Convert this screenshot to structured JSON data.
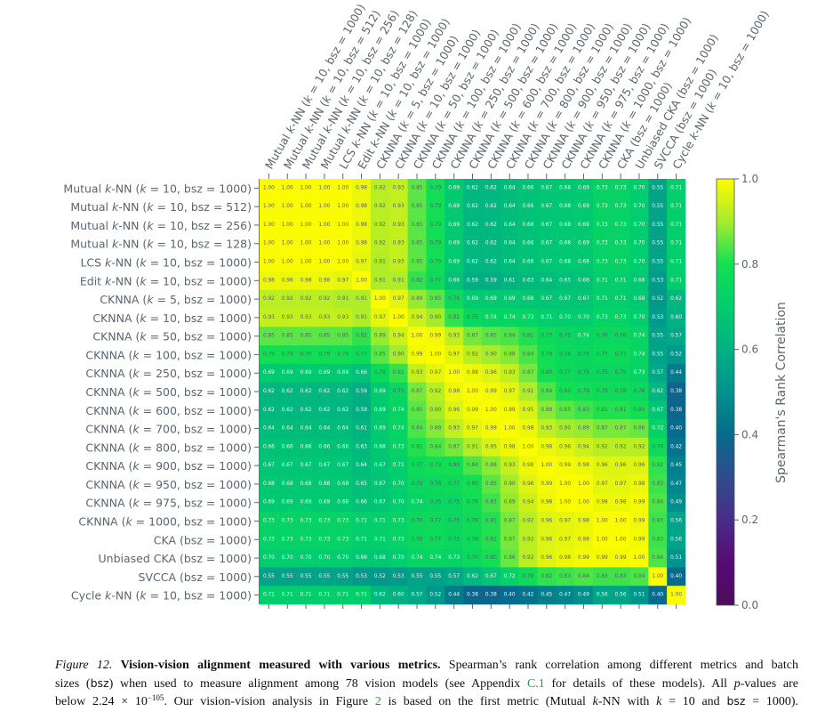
{
  "chart_data": {
    "type": "heatmap",
    "row_labels": [
      "Mutual k-NN (k = 10, bsz = 1000)",
      "Mutual k-NN (k = 10, bsz = 512)",
      "Mutual k-NN (k = 10, bsz = 256)",
      "Mutual k-NN (k = 10, bsz = 128)",
      "LCS k-NN (k = 10, bsz = 1000)",
      "Edit k-NN (k = 10, bsz = 1000)",
      "CKNNA (k = 5, bsz = 1000)",
      "CKNNA (k = 10, bsz = 1000)",
      "CKNNA (k = 50, bsz = 1000)",
      "CKNNA (k = 100, bsz = 1000)",
      "CKNNA (k = 250, bsz = 1000)",
      "CKNNA (k = 500, bsz = 1000)",
      "CKNNA (k = 600, bsz = 1000)",
      "CKNNA (k = 700, bsz = 1000)",
      "CKNNA (k = 800, bsz = 1000)",
      "CKNNA (k = 900, bsz = 1000)",
      "CKNNA (k = 950, bsz = 1000)",
      "CKNNA (k = 975, bsz = 1000)",
      "CKNNA (k = 1000, bsz = 1000)",
      "CKA (bsz = 1000)",
      "Unbiased CKA (bsz = 1000)",
      "SVCCA (bsz = 1000)",
      "Cycle k-NN (k = 10, bsz = 1000)"
    ],
    "col_labels": [
      "Mutual k-NN (k = 10, bsz = 1000)",
      "Mutual k-NN (k = 10, bsz = 512)",
      "Mutual k-NN (k = 10, bsz = 256)",
      "Mutual k-NN (k = 10, bsz = 128)",
      "LCS k-NN (k = 10, bsz = 1000)",
      "Edit k-NN (k = 10, bsz = 1000)",
      "CKNNA (k = 5, bsz = 1000)",
      "CKNNA (k = 10, bsz = 1000)",
      "CKNNA (k = 50, bsz = 1000)",
      "CKNNA (k = 100, bsz = 1000)",
      "CKNNA (k = 250, bsz = 1000)",
      "CKNNA (k = 500, bsz = 1000)",
      "CKNNA (k = 600, bsz = 1000)",
      "CKNNA (k = 700, bsz = 1000)",
      "CKNNA (k = 800, bsz = 1000)",
      "CKNNA (k = 900, bsz = 1000)",
      "CKNNA (k = 950, bsz = 1000)",
      "CKNNA (k = 975, bsz = 1000)",
      "CKNNA (k = 1000, bsz = 1000)",
      "CKA (bsz = 1000)",
      "Unbiased CKA (bsz = 1000)",
      "SVCCA (bsz = 1000)",
      "Cycle k-NN (k = 10, bsz = 1000)"
    ],
    "values": [
      [
        1.0,
        1.0,
        1.0,
        1.0,
        1.0,
        0.98,
        0.92,
        0.93,
        0.85,
        0.79,
        0.69,
        0.62,
        0.62,
        0.64,
        0.66,
        0.67,
        0.68,
        0.69,
        0.73,
        0.73,
        0.7,
        0.55,
        0.71
      ],
      [
        1.0,
        1.0,
        1.0,
        1.0,
        1.0,
        0.98,
        0.92,
        0.93,
        0.85,
        0.79,
        0.69,
        0.62,
        0.62,
        0.64,
        0.66,
        0.67,
        0.68,
        0.69,
        0.73,
        0.73,
        0.7,
        0.55,
        0.71
      ],
      [
        1.0,
        1.0,
        1.0,
        1.0,
        1.0,
        0.98,
        0.92,
        0.93,
        0.85,
        0.79,
        0.69,
        0.62,
        0.62,
        0.64,
        0.66,
        0.67,
        0.68,
        0.69,
        0.73,
        0.73,
        0.7,
        0.55,
        0.71
      ],
      [
        1.0,
        1.0,
        1.0,
        1.0,
        1.0,
        0.98,
        0.92,
        0.93,
        0.85,
        0.79,
        0.69,
        0.62,
        0.62,
        0.64,
        0.66,
        0.67,
        0.68,
        0.69,
        0.73,
        0.73,
        0.7,
        0.55,
        0.71
      ],
      [
        1.0,
        1.0,
        1.0,
        1.0,
        1.0,
        0.97,
        0.91,
        0.93,
        0.85,
        0.79,
        0.69,
        0.62,
        0.62,
        0.64,
        0.66,
        0.67,
        0.68,
        0.68,
        0.73,
        0.73,
        0.7,
        0.55,
        0.71
      ],
      [
        0.98,
        0.98,
        0.98,
        0.98,
        0.97,
        1.0,
        0.91,
        0.91,
        0.82,
        0.77,
        0.66,
        0.59,
        0.59,
        0.61,
        0.63,
        0.64,
        0.65,
        0.66,
        0.71,
        0.71,
        0.68,
        0.53,
        0.71
      ],
      [
        0.92,
        0.92,
        0.92,
        0.92,
        0.91,
        0.91,
        1.0,
        0.97,
        0.89,
        0.85,
        0.76,
        0.69,
        0.69,
        0.69,
        0.68,
        0.67,
        0.67,
        0.67,
        0.71,
        0.71,
        0.68,
        0.52,
        0.62
      ],
      [
        0.93,
        0.93,
        0.93,
        0.93,
        0.93,
        0.91,
        0.97,
        1.0,
        0.94,
        0.9,
        0.82,
        0.75,
        0.74,
        0.74,
        0.73,
        0.71,
        0.7,
        0.7,
        0.73,
        0.73,
        0.7,
        0.53,
        0.6
      ],
      [
        0.85,
        0.85,
        0.85,
        0.85,
        0.85,
        0.82,
        0.89,
        0.94,
        1.0,
        0.99,
        0.93,
        0.87,
        0.85,
        0.84,
        0.81,
        0.77,
        0.75,
        0.74,
        0.76,
        0.76,
        0.74,
        0.55,
        0.57
      ],
      [
        0.79,
        0.79,
        0.79,
        0.79,
        0.79,
        0.77,
        0.85,
        0.9,
        0.99,
        1.0,
        0.97,
        0.92,
        0.9,
        0.88,
        0.84,
        0.79,
        0.76,
        0.75,
        0.77,
        0.77,
        0.74,
        0.55,
        0.52
      ],
      [
        0.69,
        0.69,
        0.69,
        0.69,
        0.69,
        0.66,
        0.76,
        0.82,
        0.93,
        0.97,
        1.0,
        0.98,
        0.96,
        0.93,
        0.87,
        0.8,
        0.77,
        0.75,
        0.75,
        0.75,
        0.73,
        0.57,
        0.44
      ],
      [
        0.62,
        0.62,
        0.62,
        0.62,
        0.62,
        0.59,
        0.69,
        0.75,
        0.87,
        0.92,
        0.98,
        1.0,
        0.99,
        0.97,
        0.91,
        0.84,
        0.8,
        0.79,
        0.78,
        0.78,
        0.76,
        0.62,
        0.38
      ],
      [
        0.62,
        0.62,
        0.62,
        0.62,
        0.62,
        0.59,
        0.69,
        0.74,
        0.85,
        0.9,
        0.96,
        0.99,
        1.0,
        0.99,
        0.95,
        0.88,
        0.85,
        0.83,
        0.81,
        0.81,
        0.8,
        0.67,
        0.38
      ],
      [
        0.64,
        0.64,
        0.64,
        0.64,
        0.64,
        0.61,
        0.69,
        0.74,
        0.84,
        0.88,
        0.93,
        0.97,
        0.99,
        1.0,
        0.98,
        0.93,
        0.9,
        0.89,
        0.87,
        0.87,
        0.86,
        0.72,
        0.4
      ],
      [
        0.66,
        0.66,
        0.66,
        0.66,
        0.66,
        0.63,
        0.68,
        0.73,
        0.81,
        0.84,
        0.87,
        0.91,
        0.95,
        0.98,
        1.0,
        0.98,
        0.96,
        0.94,
        0.92,
        0.92,
        0.92,
        0.78,
        0.42
      ],
      [
        0.67,
        0.67,
        0.67,
        0.67,
        0.67,
        0.64,
        0.67,
        0.71,
        0.77,
        0.79,
        0.8,
        0.84,
        0.88,
        0.93,
        0.98,
        1.0,
        0.99,
        0.98,
        0.96,
        0.96,
        0.96,
        0.82,
        0.45
      ],
      [
        0.68,
        0.68,
        0.68,
        0.68,
        0.68,
        0.65,
        0.67,
        0.7,
        0.75,
        0.76,
        0.77,
        0.8,
        0.85,
        0.9,
        0.96,
        0.99,
        1.0,
        1.0,
        0.97,
        0.97,
        0.98,
        0.83,
        0.47
      ],
      [
        0.69,
        0.69,
        0.69,
        0.69,
        0.68,
        0.66,
        0.67,
        0.7,
        0.74,
        0.75,
        0.75,
        0.79,
        0.83,
        0.89,
        0.94,
        0.98,
        1.0,
        1.0,
        0.98,
        0.98,
        0.99,
        0.84,
        0.49
      ],
      [
        0.73,
        0.73,
        0.73,
        0.73,
        0.73,
        0.71,
        0.71,
        0.73,
        0.76,
        0.77,
        0.75,
        0.78,
        0.81,
        0.87,
        0.92,
        0.96,
        0.97,
        0.98,
        1.0,
        1.0,
        0.99,
        0.83,
        0.56
      ],
      [
        0.73,
        0.73,
        0.73,
        0.73,
        0.73,
        0.71,
        0.71,
        0.73,
        0.76,
        0.77,
        0.75,
        0.78,
        0.81,
        0.87,
        0.92,
        0.96,
        0.97,
        0.98,
        1.0,
        1.0,
        0.99,
        0.83,
        0.56
      ],
      [
        0.7,
        0.7,
        0.7,
        0.7,
        0.7,
        0.68,
        0.68,
        0.7,
        0.74,
        0.74,
        0.73,
        0.76,
        0.8,
        0.86,
        0.92,
        0.96,
        0.98,
        0.99,
        0.99,
        0.99,
        1.0,
        0.84,
        0.51
      ],
      [
        0.55,
        0.55,
        0.55,
        0.55,
        0.55,
        0.53,
        0.52,
        0.53,
        0.55,
        0.55,
        0.57,
        0.62,
        0.67,
        0.72,
        0.78,
        0.82,
        0.83,
        0.84,
        0.83,
        0.83,
        0.84,
        1.0,
        0.4
      ],
      [
        0.71,
        0.71,
        0.71,
        0.71,
        0.71,
        0.71,
        0.62,
        0.6,
        0.57,
        0.52,
        0.44,
        0.38,
        0.38,
        0.4,
        0.42,
        0.45,
        0.47,
        0.49,
        0.56,
        0.56,
        0.51,
        0.4,
        1.0
      ]
    ],
    "value_range": [
      0,
      1
    ],
    "colorbar": {
      "label": "Spearman's Rank Correlation",
      "ticks": [
        0.0,
        0.2,
        0.4,
        0.6,
        0.8,
        1.0
      ],
      "tick_labels": [
        "0.0",
        "0.2",
        "0.4",
        "0.6",
        "0.8",
        "1.0"
      ]
    },
    "colormap": [
      {
        "v": 0.0,
        "color": "#4b0c5e"
      },
      {
        "v": 0.1,
        "color": "#560a73"
      },
      {
        "v": 0.2,
        "color": "#4a2c89"
      },
      {
        "v": 0.3,
        "color": "#2f4c8d"
      },
      {
        "v": 0.4,
        "color": "#066b8c"
      },
      {
        "v": 0.5,
        "color": "#00928d"
      },
      {
        "v": 0.6,
        "color": "#00b183"
      },
      {
        "v": 0.7,
        "color": "#00cd6e"
      },
      {
        "v": 0.8,
        "color": "#14df52"
      },
      {
        "v": 0.85,
        "color": "#5ae646"
      },
      {
        "v": 0.9,
        "color": "#a5ec2c"
      },
      {
        "v": 0.95,
        "color": "#d6f216"
      },
      {
        "v": 1.0,
        "color": "#fcfc00"
      }
    ],
    "text_colors": {
      "light_cell": "#56606a",
      "dark_cell": "#f2f5f5",
      "threshold": 0.745
    },
    "label_color": "#5a6670",
    "title": "",
    "xlabel": "",
    "ylabel": ""
  },
  "caption": {
    "label": "Figure 12.",
    "title": "Vision-vision alignment measured with various metrics.",
    "l1_rest": "Spearman’s rank correlation among different metrics and batch",
    "l2_a": "sizes (",
    "l2_bsz": "bsz",
    "l2_b": ") when used to measure alignment among 78 vision models (see Appendix ",
    "l2_link": "C.1",
    "l2_c": " for details of these models). All ",
    "l2_p": "p",
    "l2_d": "-values are",
    "l3_a": "below 2.24 × 10",
    "l3_exp": "−105",
    "l3_b": ". Our vision-vision analysis in Figure ",
    "l3_link": "2",
    "l3_c": " is based on the first metric (Mutual ",
    "l3_k1": "k",
    "l3_d": "-NN with ",
    "l3_k2": "k",
    "l3_e": " = 10 and ",
    "l3_bsz": "bsz",
    "l3_f": " = 1000).",
    "link_color": "#1f9d3a"
  }
}
